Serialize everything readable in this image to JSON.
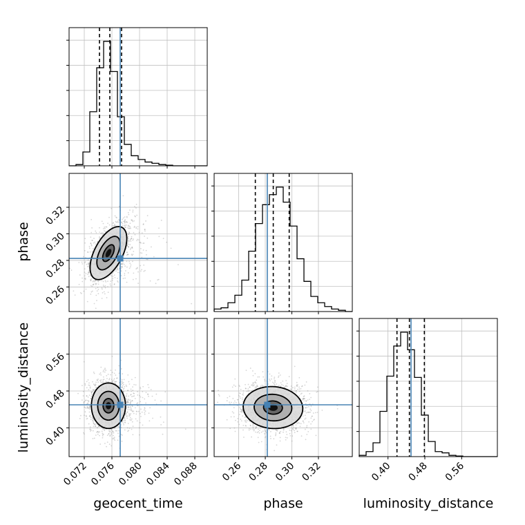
{
  "chart_data": {
    "type": "corner",
    "parameters": [
      "geocent_time",
      "phase",
      "luminosity_distance"
    ],
    "axis_labels": {
      "geocent_time": "geocent_time",
      "phase": "phase",
      "luminosity_distance": "luminosity_distance"
    },
    "ranges": {
      "geocent_time": [
        0.0698,
        0.0898
      ],
      "phase": [
        0.2415,
        0.3455
      ],
      "luminosity_distance": [
        0.3375,
        0.6375
      ]
    },
    "ticks": {
      "geocent_time": [
        "0.072",
        "0.076",
        "0.080",
        "0.084",
        "0.088"
      ],
      "phase": [
        "0.26",
        "0.28",
        "0.30",
        "0.32"
      ],
      "luminosity_distance": [
        "0.40",
        "0.48",
        "0.56"
      ]
    },
    "tick_values": {
      "geocent_time": [
        0.072,
        0.076,
        0.08,
        0.084,
        0.088
      ],
      "phase": [
        0.26,
        0.28,
        0.3,
        0.32
      ],
      "luminosity_distance": [
        0.4,
        0.48,
        0.56
      ]
    },
    "truths": {
      "geocent_time": 0.0772,
      "phase": 0.2815,
      "luminosity_distance": 0.45
    },
    "quantiles": {
      "geocent_time": [
        0.0742,
        0.0757,
        0.0774
      ],
      "phase": [
        0.2725,
        0.286,
        0.298
      ],
      "luminosity_distance": [
        0.4195,
        0.4465,
        0.479
      ]
    },
    "histograms": {
      "geocent_time": {
        "bin_edges": [
          0.0698,
          0.0708,
          0.0718,
          0.0728,
          0.0738,
          0.0748,
          0.0758,
          0.0768,
          0.0778,
          0.0788,
          0.0798,
          0.0808,
          0.0818,
          0.0828,
          0.0838,
          0.0848,
          0.0858,
          0.0868,
          0.0878,
          0.0888,
          0.0898
        ],
        "counts": [
          0,
          0.01,
          0.11,
          0.43,
          0.78,
          0.99,
          0.75,
          0.39,
          0.17,
          0.08,
          0.05,
          0.03,
          0.02,
          0.01,
          0.005,
          0,
          0,
          0,
          0,
          0
        ]
      },
      "phase": {
        "bin_edges": [
          0.2415,
          0.2467,
          0.2519,
          0.2571,
          0.2623,
          0.2675,
          0.2727,
          0.2779,
          0.2831,
          0.2883,
          0.2935,
          0.2987,
          0.3039,
          0.3091,
          0.3143,
          0.3195,
          0.3247,
          0.3299,
          0.3351,
          0.3403,
          0.3455
        ],
        "counts": [
          0.02,
          0.03,
          0.07,
          0.13,
          0.25,
          0.48,
          0.7,
          0.85,
          0.93,
          0.99,
          0.87,
          0.68,
          0.42,
          0.24,
          0.12,
          0.07,
          0.04,
          0.02,
          0.01,
          0
        ]
      },
      "luminosity_distance": {
        "bin_edges": [
          0.3375,
          0.3525,
          0.3675,
          0.3825,
          0.3975,
          0.4125,
          0.4275,
          0.4425,
          0.4575,
          0.4725,
          0.4875,
          0.5025,
          0.5175,
          0.5325,
          0.5475,
          0.5625,
          0.5775,
          0.5925,
          0.6075,
          0.6225,
          0.6375
        ],
        "counts": [
          0.01,
          0.04,
          0.11,
          0.36,
          0.64,
          0.88,
          0.99,
          0.85,
          0.63,
          0.33,
          0.12,
          0.04,
          0.03,
          0.01,
          0.005,
          0,
          0,
          0,
          0,
          0
        ]
      }
    },
    "contours_2d": [
      {
        "x": "geocent_time",
        "y": "phase",
        "center": [
          0.0755,
          0.2855
        ],
        "sigma": [
          0.0014,
          0.0105
        ],
        "rho": 0.55
      },
      {
        "x": "geocent_time",
        "y": "luminosity_distance",
        "center": [
          0.0755,
          0.448
        ],
        "sigma": [
          0.0013,
          0.026
        ],
        "rho": 0.0
      },
      {
        "x": "phase",
        "y": "luminosity_distance",
        "center": [
          0.2858,
          0.444
        ],
        "sigma": [
          0.0118,
          0.024
        ],
        "rho": -0.05
      }
    ],
    "contour_levels_sigma": [
      0.6,
      1.2,
      1.9
    ],
    "colors": {
      "truth": "#4682b4",
      "contour": "#000000",
      "points": "#888888",
      "grid": "#c0c0c0"
    },
    "grid": true
  }
}
